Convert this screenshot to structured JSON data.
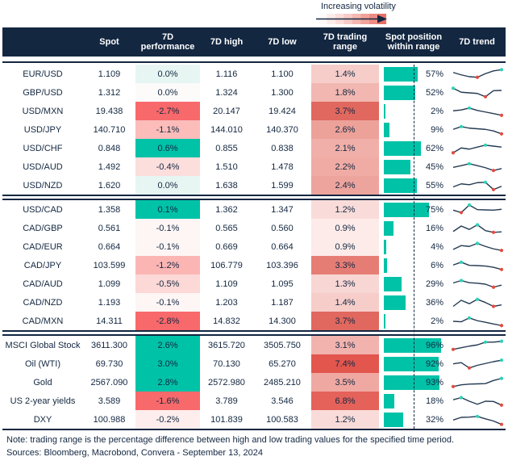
{
  "legend": {
    "label": "Increasing volatility"
  },
  "colors": {
    "navy": "#132741",
    "teal": "#00c2a7",
    "strong_red": "#f8696b",
    "sparkline": "#243a52",
    "teal_dot": "#2fd1b6",
    "red_dot": "#e14b42"
  },
  "chart_data": {
    "type": "table",
    "columns": [
      "",
      "Spot",
      "7D performance",
      "7D high",
      "7D low",
      "7D trading range",
      "Spot position within range",
      "7D trend"
    ],
    "legend_note": "Increasing volatility",
    "groups": [
      {
        "rows": [
          {
            "instrument": "EUR/USD",
            "spot": "1.109",
            "performance": "0.0%",
            "performance_bg": "#e7f6f3",
            "high": "1.116",
            "low": "1.100",
            "range": "1.4%",
            "range_bg": "#f6cdc9",
            "position": "57%",
            "position_pct": 57,
            "trend": {
              "points": [
                0.65,
                0.45,
                0.3,
                0.25,
                0.55,
                0.78,
                0.88
              ],
              "teal_dots": [
                6
              ],
              "red_dots": [
                3
              ]
            }
          },
          {
            "instrument": "GBP/USD",
            "spot": "1.312",
            "performance": "0.0%",
            "performance_bg": "#fdfafa",
            "high": "1.324",
            "low": "1.300",
            "range": "1.8%",
            "range_bg": "#f2b7b1",
            "position": "52%",
            "position_pct": 52,
            "trend": {
              "points": [
                0.88,
                0.55,
                0.5,
                0.45,
                0.18,
                0.68,
                0.7
              ],
              "teal_dots": [
                0
              ],
              "red_dots": [
                4
              ]
            }
          },
          {
            "instrument": "USD/MXN",
            "spot": "19.438",
            "performance": "-2.7%",
            "performance_bg": "#f8696b",
            "high": "20.147",
            "low": "19.424",
            "range": "3.7%",
            "range_bg": "#e0685f",
            "position": "2%",
            "position_pct": 2,
            "trend": {
              "points": [
                0.55,
                0.62,
                0.78,
                0.58,
                0.45,
                0.32,
                0.18
              ],
              "teal_dots": [
                2
              ],
              "red_dots": [
                6
              ]
            }
          },
          {
            "instrument": "USD/JPY",
            "spot": "140.710",
            "performance": "-1.1%",
            "performance_bg": "#fbbcba",
            "high": "144.010",
            "low": "140.370",
            "range": "2.6%",
            "range_bg": "#eca199",
            "position": "9%",
            "position_pct": 9,
            "trend": {
              "points": [
                0.55,
                0.78,
                0.65,
                0.6,
                0.55,
                0.42,
                0.18
              ],
              "teal_dots": [
                1
              ],
              "red_dots": [
                6
              ]
            }
          },
          {
            "instrument": "USD/CHF",
            "spot": "0.848",
            "performance": "0.6%",
            "performance_bg": "#00c2a7",
            "high": "0.855",
            "low": "0.838",
            "range": "2.1%",
            "range_bg": "#f0afa9",
            "position": "62%",
            "position_pct": 62,
            "trend": {
              "points": [
                0.15,
                0.55,
                0.45,
                0.62,
                0.78,
                0.7,
                0.62
              ],
              "teal_dots": [
                4
              ],
              "red_dots": [
                0
              ]
            }
          },
          {
            "instrument": "USD/AUD",
            "spot": "1.492",
            "performance": "-0.4%",
            "performance_bg": "#fcdedd",
            "high": "1.510",
            "low": "1.478",
            "range": "2.2%",
            "range_bg": "#efaba4",
            "position": "45%",
            "position_pct": 45,
            "trend": {
              "points": [
                0.48,
                0.62,
                0.78,
                0.62,
                0.45,
                0.22,
                0.38
              ],
              "teal_dots": [
                2
              ],
              "red_dots": [
                5
              ]
            }
          },
          {
            "instrument": "USD/NZD",
            "spot": "1.620",
            "performance": "0.0%",
            "performance_bg": "#e7f6f3",
            "high": "1.638",
            "low": "1.599",
            "range": "2.4%",
            "range_bg": "#eda49d",
            "position": "55%",
            "position_pct": 55,
            "trend": {
              "points": [
                0.4,
                0.65,
                0.58,
                0.75,
                0.78,
                0.18,
                0.45
              ],
              "teal_dots": [
                4
              ],
              "red_dots": [
                5
              ]
            }
          }
        ]
      },
      {
        "rows": [
          {
            "instrument": "USD/CAD",
            "spot": "1.358",
            "performance": "0.1%",
            "performance_bg": "#00c2a7",
            "high": "1.362",
            "low": "1.347",
            "range": "1.2%",
            "range_bg": "#f9dcd9",
            "position": "75%",
            "position_pct": 75,
            "trend": {
              "points": [
                0.48,
                0.28,
                0.9,
                0.52,
                0.5,
                0.48,
                0.55
              ],
              "teal_dots": [
                2
              ],
              "red_dots": [
                1
              ]
            }
          },
          {
            "instrument": "CAD/GBP",
            "spot": "0.561",
            "performance": "-0.1%",
            "performance_bg": "#fdf6f5",
            "high": "0.565",
            "low": "0.560",
            "range": "0.9%",
            "range_bg": "#fcebe9",
            "position": "16%",
            "position_pct": 16,
            "trend": {
              "points": [
                0.25,
                0.7,
                0.42,
                0.8,
                0.32,
                0.18,
                0.22
              ],
              "teal_dots": [
                3
              ],
              "red_dots": [
                5
              ]
            }
          },
          {
            "instrument": "CAD/EUR",
            "spot": "0.664",
            "performance": "-0.1%",
            "performance_bg": "#fdf6f5",
            "high": "0.669",
            "low": "0.664",
            "range": "0.9%",
            "range_bg": "#fcebe9",
            "position": "4%",
            "position_pct": 4,
            "trend": {
              "points": [
                0.3,
                0.62,
                0.55,
                0.8,
                0.55,
                0.35,
                0.22
              ],
              "teal_dots": [
                3
              ],
              "red_dots": [
                6
              ]
            }
          },
          {
            "instrument": "CAD/JPY",
            "spot": "103.599",
            "performance": "-1.2%",
            "performance_bg": "#fbb6b4",
            "high": "106.779",
            "low": "103.396",
            "range": "3.3%",
            "range_bg": "#e67d75",
            "position": "6%",
            "position_pct": 6,
            "trend": {
              "points": [
                0.55,
                0.78,
                0.52,
                0.5,
                0.46,
                0.36,
                0.18
              ],
              "teal_dots": [
                1
              ],
              "red_dots": [
                6
              ]
            }
          },
          {
            "instrument": "CAD/AUD",
            "spot": "1.099",
            "performance": "-0.5%",
            "performance_bg": "#fcd8d6",
            "high": "1.109",
            "low": "1.095",
            "range": "1.3%",
            "range_bg": "#f8d6d3",
            "position": "29%",
            "position_pct": 29,
            "trend": {
              "points": [
                0.6,
                0.8,
                0.62,
                0.58,
                0.5,
                0.25,
                0.42
              ],
              "teal_dots": [
                1
              ],
              "red_dots": [
                5
              ]
            }
          },
          {
            "instrument": "CAD/NZD",
            "spot": "1.193",
            "performance": "-0.1%",
            "performance_bg": "#fdf6f5",
            "high": "1.203",
            "low": "1.187",
            "range": "1.4%",
            "range_bg": "#f6cdc9",
            "position": "36%",
            "position_pct": 36,
            "trend": {
              "points": [
                0.2,
                0.7,
                0.42,
                0.78,
                0.52,
                0.2,
                0.32
              ],
              "teal_dots": [
                3
              ],
              "red_dots": [
                5
              ]
            }
          },
          {
            "instrument": "CAD/MXN",
            "spot": "14.311",
            "performance": "-2.8%",
            "performance_bg": "#f8696b",
            "high": "14.832",
            "low": "14.300",
            "range": "3.7%",
            "range_bg": "#e0685f",
            "position": "2%",
            "position_pct": 2,
            "trend": {
              "points": [
                0.5,
                0.46,
                0.78,
                0.55,
                0.42,
                0.28,
                0.15
              ],
              "teal_dots": [
                2
              ],
              "red_dots": [
                6
              ]
            }
          }
        ]
      },
      {
        "rows": [
          {
            "instrument": "MSCI Global Stock",
            "spot": "3611.300",
            "performance": "2.6%",
            "performance_bg": "#00c2a7",
            "high": "3615.720",
            "low": "3505.750",
            "range": "3.1%",
            "range_bg": "#f2b3ae",
            "position": "96%",
            "position_pct": 96,
            "trend": {
              "points": [
                0.18,
                0.32,
                0.45,
                0.55,
                0.78,
                0.78,
                0.85
              ],
              "teal_dots": [
                4,
                6
              ],
              "red_dots": [
                0
              ]
            }
          },
          {
            "instrument": "Oil (WTI)",
            "spot": "69.730",
            "performance": "3.0%",
            "performance_bg": "#00c2a7",
            "high": "70.130",
            "low": "65.270",
            "range": "7.4%",
            "range_bg": "#e2564e",
            "position": "92%",
            "position_pct": 92,
            "trend": {
              "points": [
                0.52,
                0.62,
                0.18,
                0.4,
                0.55,
                0.7,
                0.82
              ],
              "teal_dots": [
                6
              ],
              "red_dots": [
                2
              ]
            }
          },
          {
            "instrument": "Gold",
            "spot": "2567.090",
            "performance": "2.8%",
            "performance_bg": "#00c2a7",
            "high": "2572.980",
            "low": "2485.210",
            "range": "3.5%",
            "range_bg": "#f0a8a2",
            "position": "93%",
            "position_pct": 93,
            "trend": {
              "points": [
                0.18,
                0.32,
                0.38,
                0.4,
                0.42,
                0.68,
                0.85
              ],
              "teal_dots": [
                6
              ],
              "red_dots": [
                0
              ]
            }
          },
          {
            "instrument": "US 2-year yields",
            "spot": "3.589",
            "performance": "-1.6%",
            "performance_bg": "#f8696b",
            "high": "3.789",
            "low": "3.546",
            "range": "6.8%",
            "range_bg": "#e4625a",
            "position": "18%",
            "position_pct": 18,
            "trend": {
              "points": [
                0.62,
                0.8,
                0.5,
                0.25,
                0.5,
                0.48,
                0.18
              ],
              "teal_dots": [
                1
              ],
              "red_dots": [
                6
              ]
            }
          },
          {
            "instrument": "DXY",
            "spot": "100.988",
            "performance": "-0.2%",
            "performance_bg": "#fdeeed",
            "high": "101.839",
            "low": "100.583",
            "range": "1.2%",
            "range_bg": "#f9dcd9",
            "position": "32%",
            "position_pct": 32,
            "trend": {
              "points": [
                0.48,
                0.7,
                0.72,
                0.78,
                0.58,
                0.4,
                0.12
              ],
              "teal_dots": [
                3
              ],
              "red_dots": [
                6
              ]
            }
          }
        ]
      }
    ]
  },
  "footer": {
    "note": "Note: trading range is the percentage difference between high and low trading values for the specified time period.",
    "sources": "Sources: Bloomberg, Macrobond, Convera - September 13, 2024"
  }
}
